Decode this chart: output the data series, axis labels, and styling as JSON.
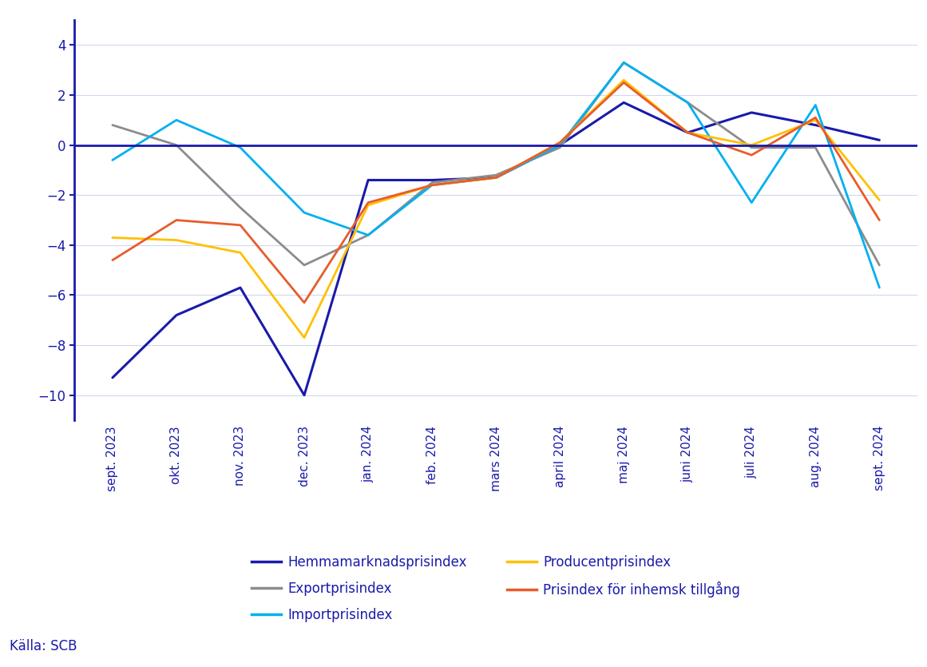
{
  "categories": [
    "sept. 2023",
    "okt. 2023",
    "nov. 2023",
    "dec. 2023",
    "jan. 2024",
    "feb. 2024",
    "mars 2024",
    "april 2024",
    "maj 2024",
    "juni 2024",
    "juli 2024",
    "aug. 2024",
    "sept. 2024"
  ],
  "series": {
    "Hemmamarknadsprisindex": {
      "values": [
        -9.3,
        -6.8,
        -5.7,
        -10.0,
        -1.4,
        -1.4,
        -1.3,
        0.0,
        1.7,
        0.5,
        1.3,
        0.8,
        0.2
      ],
      "color": "#1a1aaa",
      "linewidth": 2.2
    },
    "Exportprisindex": {
      "values": [
        0.8,
        0.0,
        -2.5,
        -4.8,
        -3.6,
        -1.5,
        -1.2,
        -0.1,
        3.3,
        1.7,
        -0.1,
        -0.1,
        -4.8
      ],
      "color": "#8c8c8c",
      "linewidth": 2.0
    },
    "Importprisindex": {
      "values": [
        -0.6,
        1.0,
        -0.1,
        -2.7,
        -3.6,
        -1.6,
        -1.3,
        0.0,
        3.3,
        1.7,
        -2.3,
        1.6,
        -5.7
      ],
      "color": "#00b0f0",
      "linewidth": 2.0
    },
    "Producentprisindex": {
      "values": [
        -3.7,
        -3.8,
        -4.3,
        -7.7,
        -2.4,
        -1.6,
        -1.3,
        0.1,
        2.6,
        0.5,
        0.0,
        1.0,
        -2.2
      ],
      "color": "#ffc000",
      "linewidth": 2.0
    },
    "Prisindex för inhemsk tillgång": {
      "values": [
        -4.6,
        -3.0,
        -3.2,
        -6.3,
        -2.3,
        -1.6,
        -1.3,
        0.1,
        2.5,
        0.5,
        -0.4,
        1.1,
        -3.0
      ],
      "color": "#e85c2b",
      "linewidth": 2.0
    }
  },
  "ylim": [
    -11,
    5
  ],
  "yticks": [
    -10,
    -8,
    -6,
    -4,
    -2,
    0,
    2,
    4
  ],
  "background_color": "#ffffff",
  "grid_color": "#d0d8f0",
  "axis_color": "#1a1aaa",
  "label_color": "#1a1aaa",
  "source_text": "Källa: SCB",
  "legend_col1": [
    "Hemmamarknadsprisindex",
    "Importprisindex",
    "Prisindex för inhemsk tillgång"
  ],
  "legend_col2": [
    "Exportprisindex",
    "Producentprisindex"
  ]
}
